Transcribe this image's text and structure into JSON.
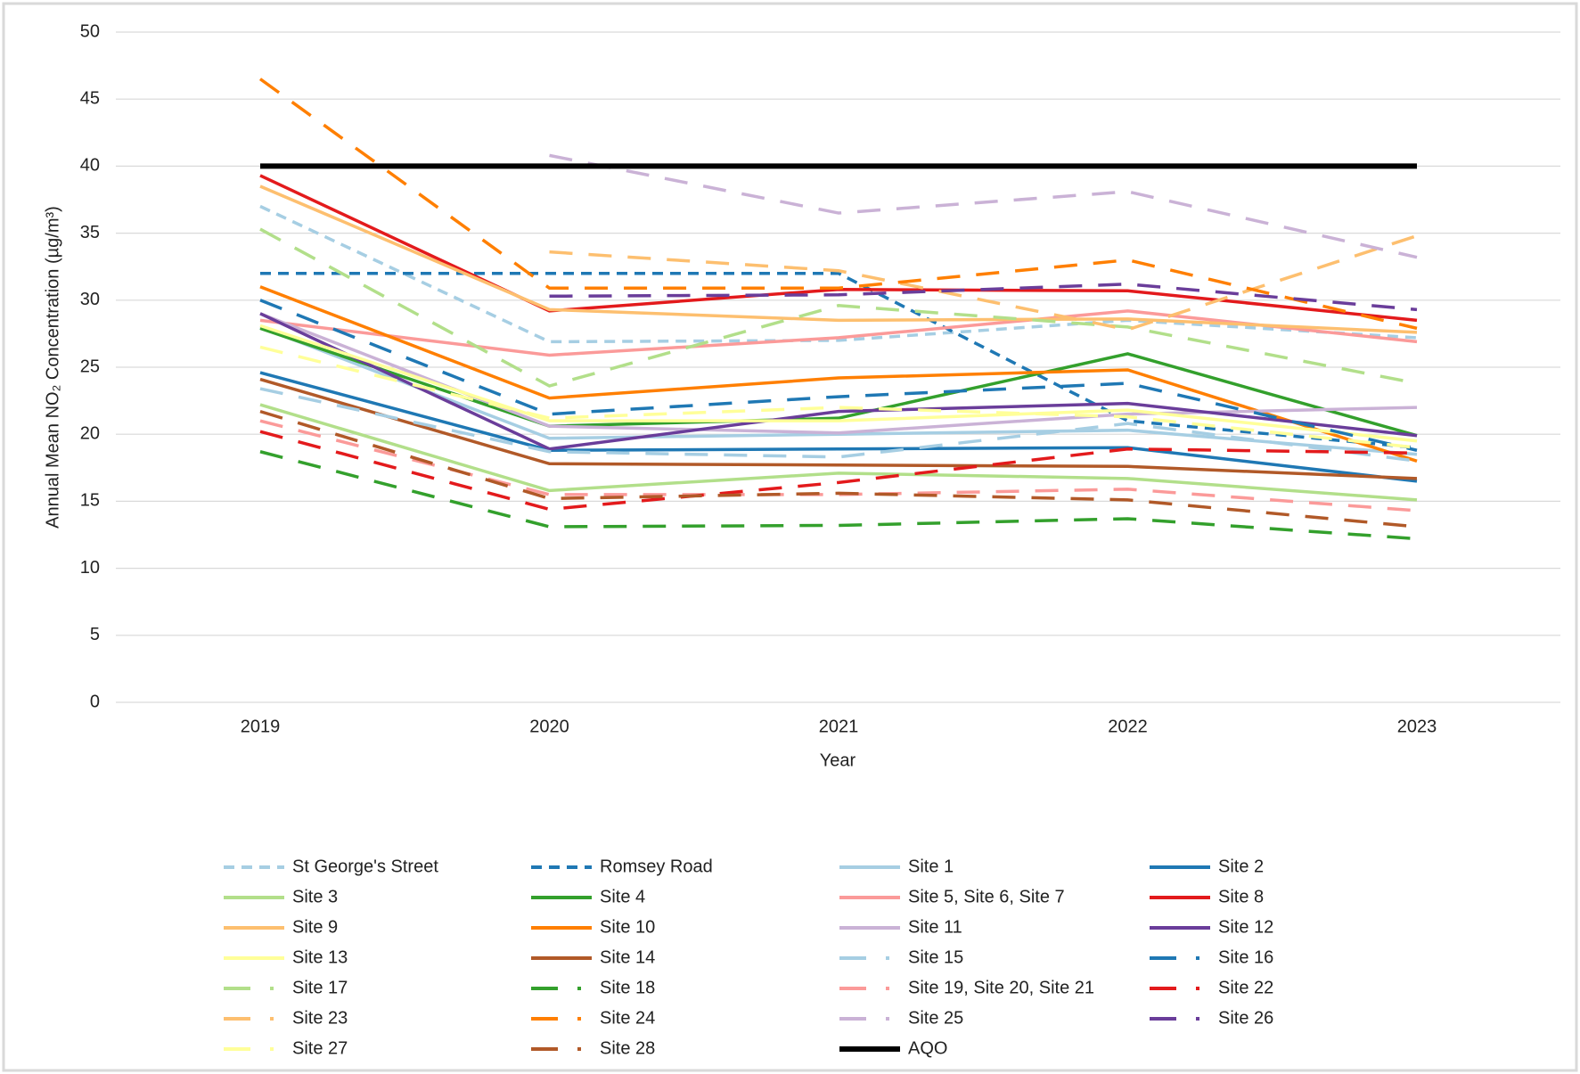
{
  "chart_data": {
    "type": "line",
    "x_label": "Year",
    "y_label": "Annual Mean NO₂ Concentration (µg/m³)",
    "categories": [
      "2019",
      "2020",
      "2021",
      "2022",
      "2023"
    ],
    "ylim": [
      0,
      50
    ],
    "yticks": [
      0,
      5,
      10,
      15,
      20,
      25,
      30,
      35,
      40,
      45,
      50
    ],
    "grid": true,
    "series": [
      {
        "name": "St George's Street",
        "color": "#a6cee3",
        "dash": "short",
        "values": [
          37,
          26.9,
          27.0,
          28.5,
          27.2
        ]
      },
      {
        "name": "Romsey Road",
        "color": "#1f78b4",
        "dash": "short",
        "values": [
          32,
          32,
          32,
          21,
          19
        ]
      },
      {
        "name": "Site 1",
        "color": "#a6cee3",
        "dash": "solid",
        "values": [
          28,
          19.7,
          20.0,
          20.3,
          18.5
        ]
      },
      {
        "name": "Site 2",
        "color": "#1f78b4",
        "dash": "solid",
        "values": [
          24.6,
          18.8,
          18.9,
          19.0,
          16.5
        ]
      },
      {
        "name": "Site 3",
        "color": "#b2df8a",
        "dash": "solid",
        "values": [
          22.2,
          15.8,
          17.1,
          16.7,
          15.1
        ]
      },
      {
        "name": "Site 4",
        "color": "#33a02c",
        "dash": "solid",
        "values": [
          27.9,
          20.6,
          21.2,
          26.0,
          19.9
        ]
      },
      {
        "name": "Site 5, Site 6, Site 7",
        "color": "#fb9a99",
        "dash": "solid",
        "values": [
          28.5,
          25.9,
          27.2,
          29.2,
          26.9
        ]
      },
      {
        "name": "Site 8",
        "color": "#e31a1c",
        "dash": "solid",
        "values": [
          39.3,
          29.2,
          30.8,
          30.7,
          28.5
        ]
      },
      {
        "name": "Site 9",
        "color": "#fdbf6f",
        "dash": "solid",
        "values": [
          38.5,
          29.3,
          28.5,
          28.6,
          27.6
        ]
      },
      {
        "name": "Site 10",
        "color": "#ff7f00",
        "dash": "solid",
        "values": [
          31,
          22.7,
          24.2,
          24.8,
          18.0
        ]
      },
      {
        "name": "Site 11",
        "color": "#cab2d6",
        "dash": "solid",
        "values": [
          29,
          20.6,
          20.1,
          21.5,
          22.0
        ]
      },
      {
        "name": "Site 12",
        "color": "#6a3d9a",
        "dash": "solid",
        "values": [
          29,
          18.9,
          21.7,
          22.3,
          19.9
        ]
      },
      {
        "name": "Site 13",
        "color": "#ffff99",
        "dash": "solid",
        "values": [
          28.1,
          21.0,
          21.0,
          21.8,
          19.5
        ]
      },
      {
        "name": "Site 14",
        "color": "#b15928",
        "dash": "solid",
        "values": [
          24.1,
          17.8,
          17.7,
          17.6,
          16.7
        ]
      },
      {
        "name": "Site 15",
        "color": "#a6cee3",
        "dash": "long",
        "values": [
          23.4,
          18.7,
          18.3,
          20.8,
          18.0
        ]
      },
      {
        "name": "Site 16",
        "color": "#1f78b4",
        "dash": "long",
        "values": [
          30,
          21.5,
          22.8,
          23.8,
          18.8
        ]
      },
      {
        "name": "Site 17",
        "color": "#b2df8a",
        "dash": "long",
        "values": [
          35.3,
          23.6,
          29.6,
          28.0,
          23.8
        ]
      },
      {
        "name": "Site 18",
        "color": "#33a02c",
        "dash": "long",
        "values": [
          18.7,
          13.1,
          13.2,
          13.7,
          12.2
        ]
      },
      {
        "name": "Site 19, Site 20, Site 21",
        "color": "#fb9a99",
        "dash": "long",
        "values": [
          21,
          15.5,
          15.5,
          15.9,
          14.3
        ]
      },
      {
        "name": "Site 22",
        "color": "#e31a1c",
        "dash": "long",
        "values": [
          20.2,
          14.4,
          16.4,
          18.9,
          18.6
        ]
      },
      {
        "name": "Site 23",
        "color": "#fdbf6f",
        "dash": "long",
        "values": [
          null,
          33.6,
          32.2,
          27.8,
          34.8
        ]
      },
      {
        "name": "Site 24",
        "color": "#ff7f00",
        "dash": "long",
        "values": [
          46.5,
          30.9,
          30.9,
          33.0,
          27.9
        ]
      },
      {
        "name": "Site 25",
        "color": "#cab2d6",
        "dash": "long",
        "values": [
          null,
          40.8,
          36.5,
          38.1,
          33.2
        ]
      },
      {
        "name": "Site 26",
        "color": "#6a3d9a",
        "dash": "long",
        "values": [
          null,
          30.3,
          30.4,
          31.2,
          29.3
        ]
      },
      {
        "name": "Site 27",
        "color": "#ffff99",
        "dash": "long",
        "values": [
          26.5,
          21.2,
          22.0,
          21.3,
          19.0
        ]
      },
      {
        "name": "Site 28",
        "color": "#b15928",
        "dash": "long",
        "values": [
          21.7,
          15.2,
          15.6,
          15.1,
          13.1
        ]
      },
      {
        "name": "AQO",
        "color": "#000000",
        "dash": "solid",
        "width": 6,
        "values": [
          40,
          40,
          40,
          40,
          40
        ]
      }
    ]
  }
}
